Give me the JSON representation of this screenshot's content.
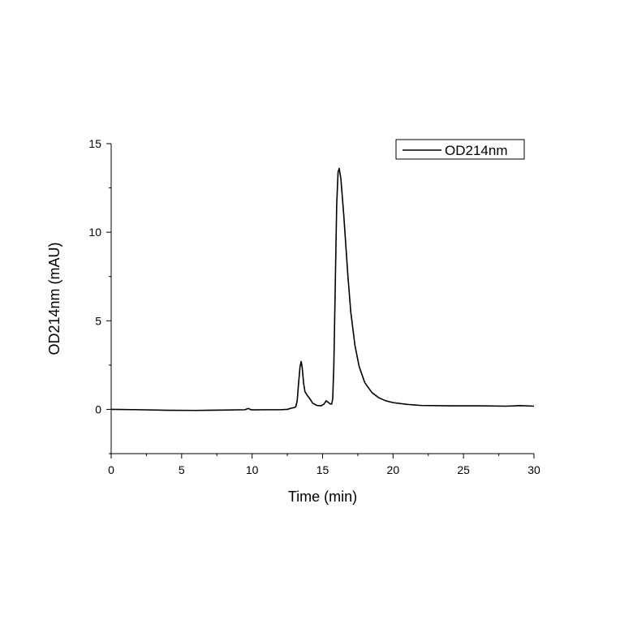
{
  "chart_data": {
    "type": "line",
    "title": "",
    "xlabel": "Time (min)",
    "ylabel": "OD214nm (mAU)",
    "xlim": [
      0,
      30
    ],
    "ylim": [
      -2.5,
      15
    ],
    "x_ticks": [
      0,
      5,
      10,
      15,
      20,
      25,
      30
    ],
    "y_ticks": [
      0,
      5,
      10,
      15
    ],
    "x_tick_labels": [
      "0",
      "5",
      "10",
      "15",
      "20",
      "25",
      "30"
    ],
    "y_tick_labels": [
      "0",
      "5",
      "10",
      "15"
    ],
    "grid": false,
    "legend_position": "top-right",
    "series": [
      {
        "name": "OD214nm",
        "color": "#000000",
        "points": [
          [
            0,
            0.0
          ],
          [
            2,
            -0.02
          ],
          [
            4,
            -0.05
          ],
          [
            6,
            -0.06
          ],
          [
            8,
            -0.04
          ],
          [
            9.5,
            -0.02
          ],
          [
            9.65,
            0.03
          ],
          [
            9.75,
            0.05
          ],
          [
            9.85,
            0.0
          ],
          [
            10,
            -0.03
          ],
          [
            11,
            -0.02
          ],
          [
            12,
            -0.02
          ],
          [
            12.5,
            0.0
          ],
          [
            12.8,
            0.07
          ],
          [
            13.0,
            0.1
          ],
          [
            13.1,
            0.15
          ],
          [
            13.2,
            0.5
          ],
          [
            13.3,
            1.5
          ],
          [
            13.4,
            2.4
          ],
          [
            13.48,
            2.7
          ],
          [
            13.55,
            2.4
          ],
          [
            13.65,
            1.5
          ],
          [
            13.75,
            1.0
          ],
          [
            13.9,
            0.8
          ],
          [
            14.1,
            0.6
          ],
          [
            14.3,
            0.35
          ],
          [
            14.6,
            0.22
          ],
          [
            14.9,
            0.2
          ],
          [
            15.1,
            0.3
          ],
          [
            15.25,
            0.48
          ],
          [
            15.4,
            0.4
          ],
          [
            15.55,
            0.3
          ],
          [
            15.65,
            0.3
          ],
          [
            15.72,
            0.6
          ],
          [
            15.8,
            2.5
          ],
          [
            15.9,
            7.0
          ],
          [
            16.0,
            11.5
          ],
          [
            16.1,
            13.4
          ],
          [
            16.18,
            13.6
          ],
          [
            16.3,
            13.0
          ],
          [
            16.5,
            11.0
          ],
          [
            16.8,
            7.5
          ],
          [
            17.0,
            5.5
          ],
          [
            17.3,
            3.6
          ],
          [
            17.6,
            2.4
          ],
          [
            18.0,
            1.5
          ],
          [
            18.5,
            0.95
          ],
          [
            19.0,
            0.65
          ],
          [
            19.5,
            0.48
          ],
          [
            20.0,
            0.38
          ],
          [
            21.0,
            0.28
          ],
          [
            22.0,
            0.22
          ],
          [
            24.0,
            0.2
          ],
          [
            26.0,
            0.2
          ],
          [
            28.0,
            0.18
          ],
          [
            29.0,
            0.21
          ],
          [
            30.0,
            0.18
          ]
        ]
      }
    ]
  }
}
